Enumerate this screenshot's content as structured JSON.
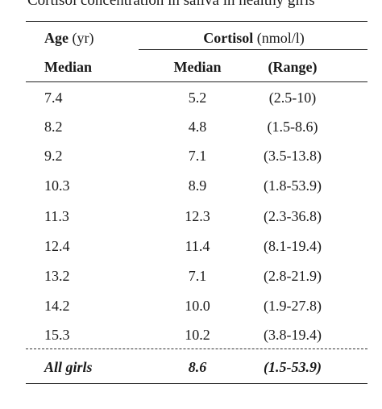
{
  "caption": "Cortisol concentration in saliva in healthy girls",
  "header": {
    "age_label": "Age",
    "age_unit": "(yr)",
    "cortisol_label": "Cortisol",
    "cortisol_unit": "(nmol/l)",
    "median_left": "Median",
    "median_right": "Median",
    "range": "(Range)"
  },
  "rows": [
    {
      "age": "7.4",
      "median": "5.2",
      "range": "(2.5-10)"
    },
    {
      "age": "8.2",
      "median": "4.8",
      "range": "(1.5-8.6)"
    },
    {
      "age": "9.2",
      "median": "7.1",
      "range": "(3.5-13.8)"
    },
    {
      "age": "10.3",
      "median": "8.9",
      "range": "(1.8-53.9)"
    },
    {
      "age": "11.3",
      "median": "12.3",
      "range": "(2.3-36.8)"
    },
    {
      "age": "12.4",
      "median": "11.4",
      "range": "(8.1-19.4)"
    },
    {
      "age": "13.2",
      "median": "7.1",
      "range": "(2.8-21.9)"
    },
    {
      "age": "14.2",
      "median": "10.0",
      "range": "(1.9-27.8)"
    },
    {
      "age": "15.3",
      "median": "10.2",
      "range": "(3.8-19.4)"
    }
  ],
  "total": {
    "label": "All girls",
    "median": "8.6",
    "range": "(1.5-53.9)"
  }
}
